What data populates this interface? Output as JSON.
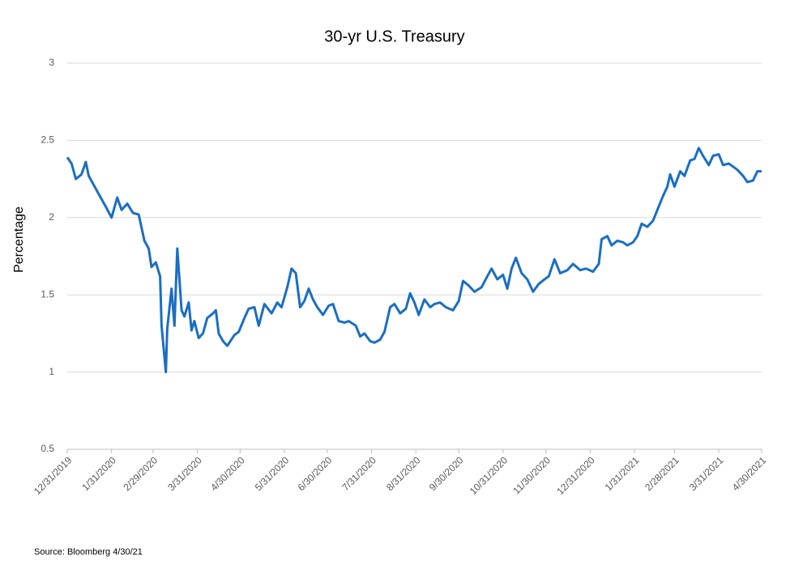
{
  "chart_data": {
    "type": "line",
    "title": "30-yr U.S. Treasury",
    "y_label": "Percentage",
    "source": "Source: Bloomberg 4/30/21",
    "xlim": [
      "12/31/2019",
      "4/30/2021"
    ],
    "xticks": [
      "12/31/2019",
      "1/31/2020",
      "2/29/2020",
      "3/31/2020",
      "4/30/2020",
      "5/31/2020",
      "6/30/2020",
      "7/31/2020",
      "8/31/2020",
      "9/30/2020",
      "10/31/2020",
      "11/30/2020",
      "12/31/2020",
      "1/31/2021",
      "2/28/2021",
      "3/31/2021",
      "4/30/2021"
    ],
    "ylim": [
      0.5,
      3
    ],
    "yticks": [
      0.5,
      1,
      1.5,
      2,
      2.5,
      3
    ],
    "grid": true,
    "x": [
      "12/31/2019",
      "1/3/2020",
      "1/6/2020",
      "1/10/2020",
      "1/13/2020",
      "1/15/2020",
      "1/21/2020",
      "1/27/2020",
      "1/31/2020",
      "2/4/2020",
      "2/7/2020",
      "2/11/2020",
      "2/15/2020",
      "2/19/2020",
      "2/23/2020",
      "2/26/2020",
      "2/28/2020",
      "3/2/2020",
      "3/5/2020",
      "3/6/2020",
      "3/9/2020",
      "3/10/2020",
      "3/13/2020",
      "3/15/2020",
      "3/17/2020",
      "3/20/2020",
      "3/22/2020",
      "3/25/2020",
      "3/27/2020",
      "3/29/2020",
      "4/1/2020",
      "4/4/2020",
      "4/7/2020",
      "4/11/2020",
      "4/13/2020",
      "4/15/2020",
      "4/18/2020",
      "4/21/2020",
      "4/26/2020",
      "4/29/2020",
      "5/3/2020",
      "5/6/2020",
      "5/10/2020",
      "5/13/2020",
      "5/17/2020",
      "5/22/2020",
      "5/26/2020",
      "5/29/2020",
      "6/2/2020",
      "6/5/2020",
      "6/8/2020",
      "6/11/2020",
      "6/14/2020",
      "6/17/2020",
      "6/20/2020",
      "6/23/2020",
      "6/27/2020",
      "7/1/2020",
      "7/4/2020",
      "7/8/2020",
      "7/12/2020",
      "7/15/2020",
      "7/20/2020",
      "7/23/2020",
      "7/26/2020",
      "7/30/2020",
      "8/2/2020",
      "8/6/2020",
      "8/9/2020",
      "8/13/2020",
      "8/16/2020",
      "8/20/2020",
      "8/24/2020",
      "8/27/2020",
      "8/30/2020",
      "9/2/2020",
      "9/6/2020",
      "9/10/2020",
      "9/13/2020",
      "9/17/2020",
      "9/21/2020",
      "9/26/2020",
      "9/30/2020",
      "10/3/2020",
      "10/7/2020",
      "10/11/2020",
      "10/16/2020",
      "10/20/2020",
      "10/23/2020",
      "10/27/2020",
      "10/31/2020",
      "11/3/2020",
      "11/6/2020",
      "11/9/2020",
      "11/13/2020",
      "11/17/2020",
      "11/21/2020",
      "11/25/2020",
      "11/29/2020",
      "12/2/2020",
      "12/6/2020",
      "12/10/2020",
      "12/15/2020",
      "12/19/2020",
      "12/24/2020",
      "12/28/2020",
      "1/2/2021",
      "1/6/2021",
      "1/8/2021",
      "1/12/2021",
      "1/15/2021",
      "1/19/2021",
      "1/23/2021",
      "1/26/2021",
      "1/30/2021",
      "2/2/2021",
      "2/5/2021",
      "2/9/2021",
      "2/13/2021",
      "2/16/2021",
      "2/20/2021",
      "2/23/2021",
      "2/25/2021",
      "2/28/2021",
      "3/4/2021",
      "3/7/2021",
      "3/11/2021",
      "3/14/2021",
      "3/17/2021",
      "3/20/2021",
      "3/24/2021",
      "3/27/2021",
      "3/31/2021",
      "4/3/2021",
      "4/7/2021",
      "4/10/2021",
      "4/13/2021",
      "4/17/2021",
      "4/20/2021",
      "4/24/2021",
      "4/27/2021",
      "4/30/2021"
    ],
    "series": [
      {
        "name": "30-yr U.S. Treasury",
        "color": "#1a6ec3",
        "values": [
          2.39,
          2.35,
          2.25,
          2.28,
          2.36,
          2.27,
          2.17,
          2.07,
          2.0,
          2.13,
          2.05,
          2.09,
          2.03,
          2.02,
          1.85,
          1.8,
          1.68,
          1.71,
          1.62,
          1.3,
          1.0,
          1.28,
          1.54,
          1.3,
          1.8,
          1.4,
          1.36,
          1.45,
          1.27,
          1.33,
          1.22,
          1.25,
          1.35,
          1.38,
          1.4,
          1.25,
          1.2,
          1.17,
          1.24,
          1.26,
          1.35,
          1.41,
          1.42,
          1.3,
          1.44,
          1.38,
          1.45,
          1.42,
          1.55,
          1.67,
          1.64,
          1.42,
          1.46,
          1.54,
          1.47,
          1.42,
          1.37,
          1.43,
          1.44,
          1.33,
          1.32,
          1.33,
          1.3,
          1.23,
          1.25,
          1.2,
          1.19,
          1.21,
          1.26,
          1.42,
          1.44,
          1.38,
          1.41,
          1.51,
          1.45,
          1.37,
          1.47,
          1.42,
          1.44,
          1.45,
          1.42,
          1.4,
          1.46,
          1.59,
          1.56,
          1.52,
          1.55,
          1.62,
          1.67,
          1.6,
          1.63,
          1.54,
          1.67,
          1.74,
          1.64,
          1.6,
          1.52,
          1.57,
          1.6,
          1.62,
          1.73,
          1.64,
          1.66,
          1.7,
          1.66,
          1.67,
          1.65,
          1.7,
          1.86,
          1.88,
          1.82,
          1.85,
          1.84,
          1.82,
          1.84,
          1.88,
          1.96,
          1.94,
          1.98,
          2.05,
          2.14,
          2.2,
          2.28,
          2.2,
          2.3,
          2.27,
          2.37,
          2.38,
          2.45,
          2.4,
          2.34,
          2.4,
          2.41,
          2.34,
          2.35,
          2.33,
          2.31,
          2.27,
          2.23,
          2.24,
          2.3,
          2.3
        ]
      }
    ]
  }
}
